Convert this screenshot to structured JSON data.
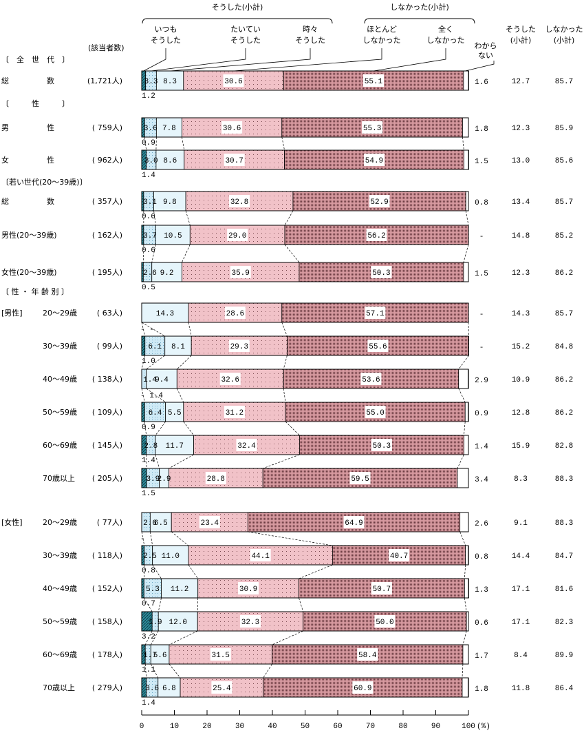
{
  "chart_data": {
    "type": "bar",
    "orientation": "horizontal-stacked",
    "header": {
      "group1": "そうした(小計)",
      "group2": "しなかった(小計)",
      "n_header": "(該当者数)",
      "series_labels": [
        [
          "いつも",
          "そうした"
        ],
        [
          "たいてい",
          "そうした"
        ],
        [
          "時々",
          "そうした"
        ],
        [
          "ほとんど",
          "しなかった"
        ],
        [
          "全く",
          "しなかった"
        ]
      ],
      "dk_label": [
        "わから",
        "ない"
      ],
      "col_sum1": [
        "そうした",
        "(小計)"
      ],
      "col_sum2": [
        "しなかった",
        "(小計)"
      ]
    },
    "series": [
      {
        "name": "いつもそうした",
        "color": "#2f8c9c"
      },
      {
        "name": "たいていそうした",
        "color": "#cfeaf6"
      },
      {
        "name": "時々そうした",
        "color": "#e6f5fb"
      },
      {
        "name": "ほとんどしなかった",
        "color": "#f1c2c8"
      },
      {
        "name": "全くしなかった",
        "color": "#b9757c"
      },
      {
        "name": "わからない",
        "color": "#ffffff"
      }
    ],
    "groups": [
      "〔　全　世　代　〕",
      "〔　　　性　　　〕",
      "〔若い世代(20～39歳)〕",
      "〔 性 ・ 年 齢 別 〕"
    ],
    "rows": [
      {
        "grp": 0,
        "prefix": "",
        "label": "総　　　　　数",
        "n": "(1,721人)",
        "values": [
          1.2,
          3.3,
          8.3,
          30.6,
          55.1,
          1.6
        ],
        "dk": "1.6",
        "sum1": "12.7",
        "sum2": "85.7"
      },
      {
        "grp": 1,
        "prefix": "",
        "label": "男　　　　　性",
        "n": "( 759人)",
        "values": [
          0.9,
          3.6,
          7.8,
          30.6,
          55.3,
          1.8
        ],
        "dk": "1.8",
        "sum1": "12.3",
        "sum2": "85.9"
      },
      {
        "grp": 1,
        "prefix": "",
        "label": "女　　　　　性",
        "n": "( 962人)",
        "values": [
          1.4,
          3.0,
          8.6,
          30.7,
          54.9,
          1.5
        ],
        "dk": "1.5",
        "sum1": "13.0",
        "sum2": "85.6"
      },
      {
        "grp": 2,
        "prefix": "",
        "label": "総　　　　　数",
        "n": "( 357人)",
        "values": [
          0.6,
          3.1,
          9.8,
          32.8,
          52.9,
          0.8
        ],
        "dk": "0.8",
        "sum1": "13.4",
        "sum2": "85.7"
      },
      {
        "grp": 2,
        "prefix": "",
        "label": "男性(20～39歳)",
        "n": "( 162人)",
        "values": [
          0.6,
          3.7,
          10.5,
          29.0,
          56.2,
          null
        ],
        "dk": "-",
        "sum1": "14.8",
        "sum2": "85.2"
      },
      {
        "grp": 2,
        "prefix": "",
        "label": "女性(20～39歳)",
        "n": "( 195人)",
        "values": [
          0.5,
          2.6,
          9.2,
          35.9,
          50.3,
          1.5
        ],
        "dk": "1.5",
        "sum1": "12.3",
        "sum2": "86.2"
      },
      {
        "grp": 3,
        "prefix": "[男性]",
        "label": "20～29歳",
        "n": "(  63人)",
        "values": [
          null,
          null,
          14.3,
          28.6,
          57.1,
          null
        ],
        "dk": "-",
        "sum1": "14.3",
        "sum2": "85.7",
        "below": "- -"
      },
      {
        "grp": 3,
        "prefix": "",
        "label": "30～39歳",
        "n": "(  99人)",
        "values": [
          1.0,
          6.1,
          8.1,
          29.3,
          55.6,
          null
        ],
        "dk": "-",
        "sum1": "15.2",
        "sum2": "84.8"
      },
      {
        "grp": 3,
        "prefix": "",
        "label": "40～49歳",
        "n": "( 138人)",
        "values": [
          null,
          1.4,
          9.4,
          32.6,
          53.6,
          2.9
        ],
        "dk": "2.9",
        "sum1": "10.9",
        "sum2": "86.2",
        "below": "- 1.4"
      },
      {
        "grp": 3,
        "prefix": "",
        "label": "50～59歳",
        "n": "( 109人)",
        "values": [
          0.9,
          6.4,
          5.5,
          31.2,
          55.0,
          0.9
        ],
        "dk": "0.9",
        "sum1": "12.8",
        "sum2": "86.2"
      },
      {
        "grp": 3,
        "prefix": "",
        "label": "60～69歳",
        "n": "( 145人)",
        "values": [
          1.4,
          2.8,
          11.7,
          32.4,
          50.3,
          1.4
        ],
        "dk": "1.4",
        "sum1": "15.9",
        "sum2": "82.8"
      },
      {
        "grp": 3,
        "prefix": "",
        "label": "70歳以上",
        "n": "( 205人)",
        "values": [
          1.5,
          3.9,
          2.9,
          28.8,
          59.5,
          3.4
        ],
        "dk": "3.4",
        "sum1": "8.3",
        "sum2": "88.3"
      },
      {
        "grp": 4,
        "prefix": "[女性]",
        "label": "20～29歳",
        "n": "(  77人)",
        "values": [
          null,
          2.6,
          6.5,
          23.4,
          64.9,
          2.6
        ],
        "dk": "2.6",
        "sum1": "9.1",
        "sum2": "88.3",
        "below": "-"
      },
      {
        "grp": 4,
        "prefix": "",
        "label": "30～39歳",
        "n": "( 118人)",
        "values": [
          0.8,
          2.5,
          11.0,
          44.1,
          40.7,
          0.8
        ],
        "dk": "0.8",
        "sum1": "14.4",
        "sum2": "84.7"
      },
      {
        "grp": 4,
        "prefix": "",
        "label": "40～49歳",
        "n": "( 152人)",
        "values": [
          0.7,
          5.3,
          11.2,
          30.9,
          50.7,
          1.3
        ],
        "dk": "1.3",
        "sum1": "17.1",
        "sum2": "81.6"
      },
      {
        "grp": 4,
        "prefix": "",
        "label": "50～59歳",
        "n": "( 158人)",
        "values": [
          3.2,
          1.9,
          12.0,
          32.3,
          50.0,
          0.6
        ],
        "dk": "0.6",
        "sum1": "17.1",
        "sum2": "82.3"
      },
      {
        "grp": 4,
        "prefix": "",
        "label": "60～69歳",
        "n": "( 178人)",
        "values": [
          1.1,
          1.7,
          5.6,
          31.5,
          58.4,
          1.7
        ],
        "dk": "1.7",
        "sum1": "8.4",
        "sum2": "89.9"
      },
      {
        "grp": 4,
        "prefix": "",
        "label": "70歳以上",
        "n": "( 279人)",
        "values": [
          1.4,
          3.6,
          6.8,
          25.4,
          60.9,
          1.8
        ],
        "dk": "1.8",
        "sum1": "11.8",
        "sum2": "86.4"
      }
    ],
    "xlim": [
      0,
      100
    ],
    "xticks": [
      "0",
      "10",
      "20",
      "30",
      "40",
      "50",
      "60",
      "70",
      "80",
      "90",
      "100"
    ],
    "xunit": "(%)",
    "grid": false,
    "legend": "top"
  }
}
